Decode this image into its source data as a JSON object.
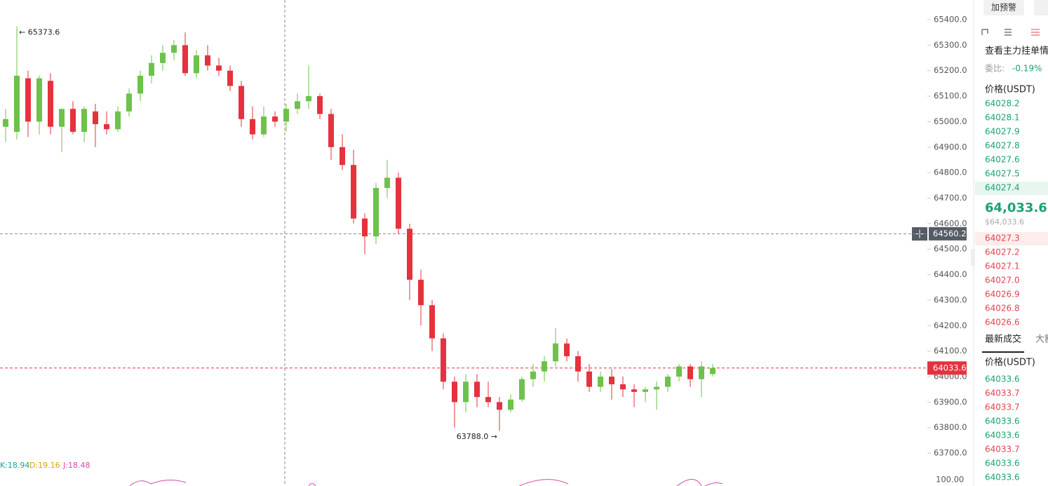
{
  "chart_data": {
    "type": "candlestick",
    "ohlc": [
      [
        64980,
        65050,
        64920,
        65010
      ],
      [
        64960,
        65373.6,
        64930,
        65180
      ],
      [
        65170,
        65200,
        64940,
        65000
      ],
      [
        65000,
        65180,
        64950,
        65170
      ],
      [
        65160,
        65190,
        64950,
        64980
      ],
      [
        64980,
        65050,
        64880,
        65050
      ],
      [
        65050,
        65080,
        64950,
        64960
      ],
      [
        64960,
        65060,
        64920,
        65050
      ],
      [
        65040,
        65070,
        64900,
        64990
      ],
      [
        64990,
        65040,
        64950,
        64970
      ],
      [
        64970,
        65060,
        64960,
        65040
      ],
      [
        65040,
        65130,
        65020,
        65110
      ],
      [
        65110,
        65200,
        65080,
        65180
      ],
      [
        65180,
        65260,
        65150,
        65230
      ],
      [
        65230,
        65300,
        65200,
        65270
      ],
      [
        65270,
        65320,
        65240,
        65300
      ],
      [
        65300,
        65350,
        65180,
        65190
      ],
      [
        65190,
        65280,
        65170,
        65260
      ],
      [
        65260,
        65300,
        65200,
        65220
      ],
      [
        65220,
        65250,
        65180,
        65200
      ],
      [
        65200,
        65220,
        65120,
        65140
      ],
      [
        65140,
        65160,
        64980,
        65010
      ],
      [
        65010,
        65060,
        64930,
        64950
      ],
      [
        64950,
        65060,
        64940,
        65020
      ],
      [
        65020,
        65040,
        64980,
        65000
      ],
      [
        65000,
        65070,
        64960,
        65050
      ],
      [
        65050,
        65110,
        65030,
        65080
      ],
      [
        65080,
        65220,
        65050,
        65100
      ],
      [
        65100,
        65110,
        65010,
        65030
      ],
      [
        65030,
        65050,
        64850,
        64900
      ],
      [
        64900,
        64950,
        64810,
        64830
      ],
      [
        64830,
        64890,
        64600,
        64620
      ],
      [
        64620,
        64640,
        64480,
        64550
      ],
      [
        64550,
        64760,
        64520,
        64740
      ],
      [
        64740,
        64850,
        64700,
        64780
      ],
      [
        64780,
        64800,
        64560,
        64580
      ],
      [
        64580,
        64600,
        64300,
        64380
      ],
      [
        64380,
        64420,
        64200,
        64280
      ],
      [
        64280,
        64300,
        64100,
        64150
      ],
      [
        64150,
        64170,
        63950,
        63980
      ],
      [
        63980,
        64000,
        63800,
        63900
      ],
      [
        63900,
        64010,
        63860,
        63980
      ],
      [
        63980,
        64010,
        63880,
        63920
      ],
      [
        63920,
        63980,
        63880,
        63900
      ],
      [
        63900,
        63920,
        63788,
        63870
      ],
      [
        63870,
        63930,
        63860,
        63910
      ],
      [
        63910,
        64000,
        63900,
        63990
      ],
      [
        63990,
        64050,
        63960,
        64020
      ],
      [
        64020,
        64080,
        63980,
        64060
      ],
      [
        64060,
        64190,
        64040,
        64130
      ],
      [
        64130,
        64150,
        64060,
        64080
      ],
      [
        64080,
        64100,
        63980,
        64020
      ],
      [
        64020,
        64050,
        63940,
        63960
      ],
      [
        63960,
        64020,
        63940,
        64000
      ],
      [
        64000,
        64030,
        63910,
        63970
      ],
      [
        63970,
        64000,
        63920,
        63950
      ],
      [
        63950,
        63970,
        63880,
        63940
      ],
      [
        63940,
        63960,
        63900,
        63950
      ],
      [
        63950,
        63980,
        63870,
        63960
      ],
      [
        63960,
        64010,
        63940,
        64000
      ],
      [
        64000,
        64050,
        63980,
        64040
      ],
      [
        64040,
        64050,
        63960,
        63990
      ],
      [
        63990,
        64060,
        63920,
        64040
      ],
      [
        64010,
        64050,
        64000,
        64033.6
      ]
    ],
    "up_color": "#6cc24a",
    "down_color": "#e5323e",
    "ylim": [
      63571,
      65477
    ],
    "yticks": [
      {
        "value": 65400,
        "label": "65400.0"
      },
      {
        "value": 65300,
        "label": "65300.0"
      },
      {
        "value": 65200,
        "label": "65200.0"
      },
      {
        "value": 65100,
        "label": "65100.0"
      },
      {
        "value": 65000,
        "label": "65000.0"
      },
      {
        "value": 64900,
        "label": "64900.0"
      },
      {
        "value": 64800,
        "label": "64800.0"
      },
      {
        "value": 64700,
        "label": "64700.0"
      },
      {
        "value": 64600,
        "label": "64600.0"
      },
      {
        "value": 64500,
        "label": "64500.0"
      },
      {
        "value": 64400,
        "label": "64400.0"
      },
      {
        "value": 64300,
        "label": "64300.0"
      },
      {
        "value": 64200,
        "label": "64200.0"
      },
      {
        "value": 64100,
        "label": "64100.0"
      },
      {
        "value": 64000,
        "label": "64000.0"
      },
      {
        "value": 63900,
        "label": "63900.0"
      },
      {
        "value": 63800,
        "label": "63800.0"
      },
      {
        "value": 63700,
        "label": "63700.0"
      }
    ],
    "high_label": "← 65373.6",
    "low_label": "63788.0 →",
    "crosshair_price": 64560.2,
    "last_price": 64033.6,
    "indicator": {
      "k": "K:18.94",
      "d": "D:19.16",
      "j": "J:18.48",
      "axis_label": "100.00"
    }
  },
  "panel": {
    "alert_button": "加预警",
    "view_orders": "查看主力挂单情",
    "ratio_label": "委比:",
    "ratio_value": "-0.19%",
    "book_header": "价格(USDT)",
    "asks": [
      {
        "price": "64028.2",
        "color": "#1aa36f"
      },
      {
        "price": "64028.1",
        "color": "#1aa36f"
      },
      {
        "price": "64027.9",
        "color": "#1aa36f"
      },
      {
        "price": "64027.8",
        "color": "#1aa36f"
      },
      {
        "price": "64027.6",
        "color": "#1aa36f"
      },
      {
        "price": "64027.5",
        "color": "#1aa36f"
      },
      {
        "price": "64027.4",
        "color": "#1aa36f"
      }
    ],
    "last_price": "64,033.6",
    "last_price_usd": "$64,033.6",
    "bids": [
      {
        "price": "64027.3",
        "color": "#e5434f"
      },
      {
        "price": "64027.2",
        "color": "#e5434f"
      },
      {
        "price": "64027.1",
        "color": "#e5434f"
      },
      {
        "price": "64027.0",
        "color": "#e5434f"
      },
      {
        "price": "64026.9",
        "color": "#e5434f"
      },
      {
        "price": "64026.8",
        "color": "#e5434f"
      },
      {
        "price": "64026.6",
        "color": "#e5434f"
      }
    ],
    "trades_tab": "最新成交",
    "large_tab": "大额",
    "trades_header": "价格(USDT)",
    "trades": [
      {
        "price": "64033.6",
        "color": "#1aa36f"
      },
      {
        "price": "64033.7",
        "color": "#e5434f"
      },
      {
        "price": "64033.7",
        "color": "#e5434f"
      },
      {
        "price": "64033.6",
        "color": "#1aa36f"
      },
      {
        "price": "64033.6",
        "color": "#1aa36f"
      },
      {
        "price": "64033.7",
        "color": "#e5434f"
      },
      {
        "price": "64033.6",
        "color": "#1aa36f"
      },
      {
        "price": "64033.6",
        "color": "#1aa36f"
      }
    ]
  }
}
